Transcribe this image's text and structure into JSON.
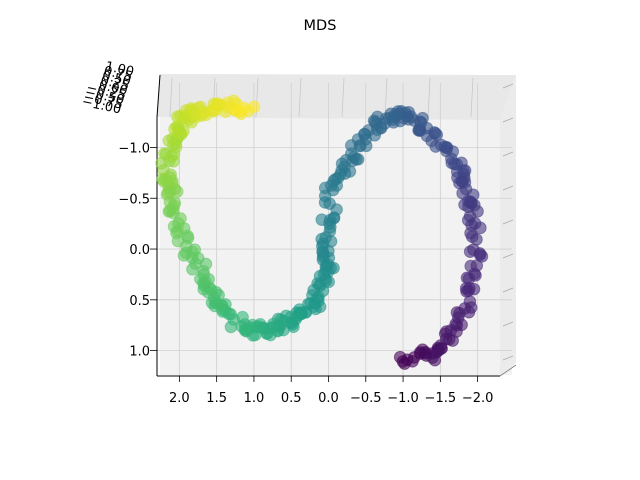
{
  "chart_data": {
    "type": "scatter",
    "projection": "3d",
    "title": "MDS",
    "x_ticks": [
      "2.0",
      "1.5",
      "1.0",
      "0.5",
      "0.0",
      "−0.5",
      "−1.0",
      "−1.5",
      "−2.0"
    ],
    "y_ticks": [
      "−1.0",
      "−0.5",
      "0.0",
      "0.5",
      "1.0"
    ],
    "z_ticks": [
      "1.00",
      "0.75",
      "0.50",
      "0.25",
      "0.00",
      "−0.25",
      "−0.50",
      "−0.75",
      "−1.00"
    ],
    "xlim": [
      2.3,
      -2.3
    ],
    "ylim": [
      -1.3,
      1.25
    ],
    "grid": true,
    "colormap": "viridis",
    "marker_color_range": [
      "#440154",
      "#fde725"
    ],
    "series": [
      {
        "x": [
          -1.0,
          -1.3,
          -1.5,
          -1.65,
          -1.8,
          -1.95,
          -2.0,
          -1.95,
          -1.9,
          -1.8,
          -1.6,
          -1.4,
          -1.2,
          -1.0,
          -0.8,
          -0.6,
          -0.4,
          -0.25,
          -0.05,
          0.0,
          0.0,
          0.0,
          0.05,
          0.15,
          0.3,
          0.45,
          0.6,
          0.8,
          1.0,
          1.2,
          1.4,
          1.55,
          1.7,
          1.85,
          2.0,
          2.1,
          2.15,
          2.15,
          2.1,
          2.0,
          1.9,
          1.75,
          1.55,
          1.3,
          1.0
        ],
        "y": [
          1.1,
          1.05,
          1.0,
          0.85,
          0.6,
          0.3,
          0.0,
          -0.3,
          -0.55,
          -0.75,
          -0.95,
          -1.1,
          -1.25,
          -1.3,
          -1.3,
          -1.2,
          -1.0,
          -0.8,
          -0.6,
          -0.3,
          0.0,
          0.15,
          0.3,
          0.5,
          0.6,
          0.7,
          0.75,
          0.8,
          0.8,
          0.75,
          0.6,
          0.45,
          0.25,
          0.05,
          -0.2,
          -0.45,
          -0.65,
          -0.85,
          -1.05,
          -1.2,
          -1.3,
          -1.35,
          -1.4,
          -1.4,
          -1.35
        ],
        "marker": "o",
        "alpha": 0.6
      }
    ]
  }
}
